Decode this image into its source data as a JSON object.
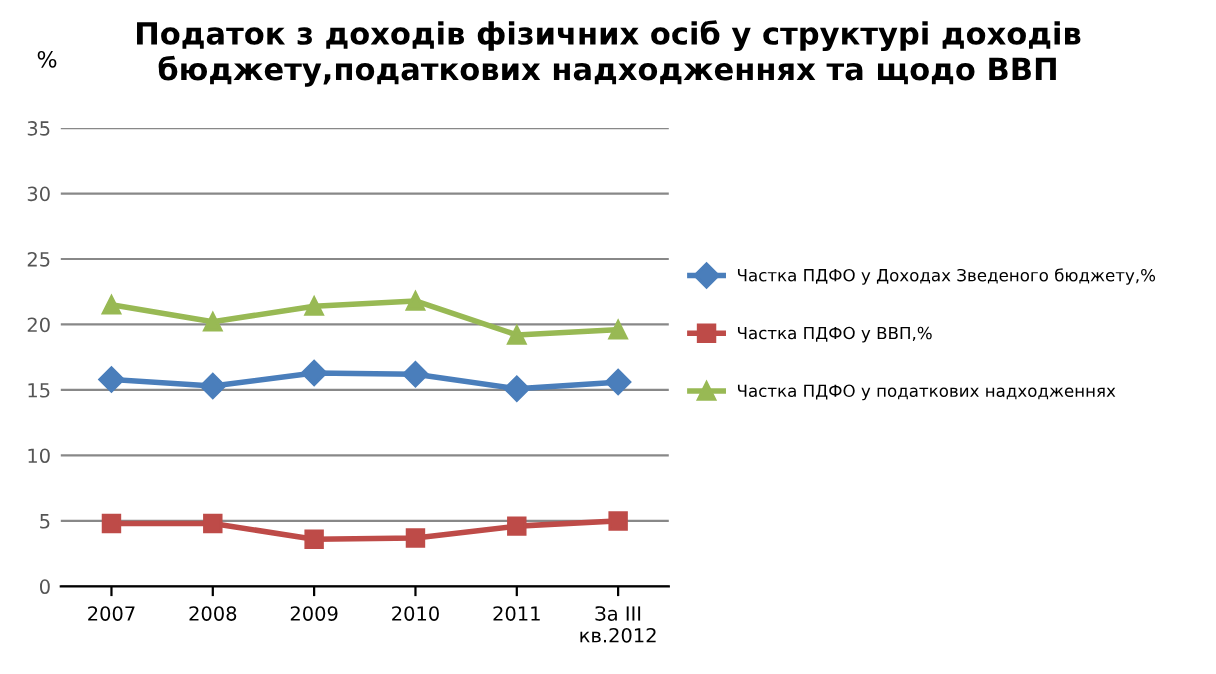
{
  "chart_data": {
    "type": "line",
    "title": "Податок з доходів фізичних осіб у структурі доходів бюджету,податкових надходженнях та щодо ВВП",
    "ylabel": "%",
    "categories": [
      "2007",
      "2008",
      "2009",
      "2010",
      "2011",
      "За III\nкв.2012"
    ],
    "series": [
      {
        "name": "Частка ПДФО у Доходах Зведеного бюджету,%",
        "color": "#4a7ebb",
        "marker": "diamond",
        "values": [
          15.8,
          15.3,
          16.3,
          16.2,
          15.1,
          15.6
        ]
      },
      {
        "name": "Частка ПДФО у ВВП,%",
        "color": "#be4b48",
        "marker": "square",
        "values": [
          4.8,
          4.8,
          3.6,
          3.7,
          4.6,
          5.0
        ]
      },
      {
        "name": "Частка ПДФО у податкових надходженнях",
        "color": "#98b954",
        "marker": "triangle",
        "values": [
          21.5,
          20.2,
          21.4,
          21.8,
          19.2,
          19.6
        ]
      }
    ],
    "ylim": [
      0,
      35
    ],
    "yticks": [
      0,
      5,
      10,
      15,
      20,
      25,
      30,
      35
    ],
    "grid": "y",
    "legend": "right",
    "line_style": "solid"
  }
}
